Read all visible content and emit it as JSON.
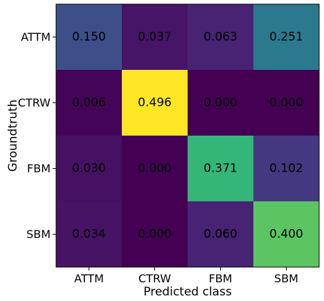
{
  "chart_data": {
    "type": "heatmap",
    "title": "",
    "xlabel": "Predicted class",
    "ylabel": "Groundtruth",
    "x_categories": [
      "ATTM",
      "CTRW",
      "FBM",
      "SBM"
    ],
    "y_categories": [
      "ATTM",
      "CTRW",
      "FBM",
      "SBM"
    ],
    "values": [
      [
        0.15,
        0.037,
        0.063,
        0.251
      ],
      [
        0.006,
        0.496,
        0.0,
        0.0
      ],
      [
        0.03,
        0.0,
        0.371,
        0.102
      ],
      [
        0.034,
        0.0,
        0.06,
        0.4
      ]
    ],
    "value_labels": [
      [
        "0.150",
        "0.037",
        "0.063",
        "0.251"
      ],
      [
        "0.006",
        "0.496",
        "0.000",
        "0.000"
      ],
      [
        "0.030",
        "0.000",
        "0.371",
        "0.102"
      ],
      [
        "0.034",
        "0.000",
        "0.060",
        "0.400"
      ]
    ],
    "colormap": "viridis",
    "grid": false,
    "colorbar": false
  }
}
